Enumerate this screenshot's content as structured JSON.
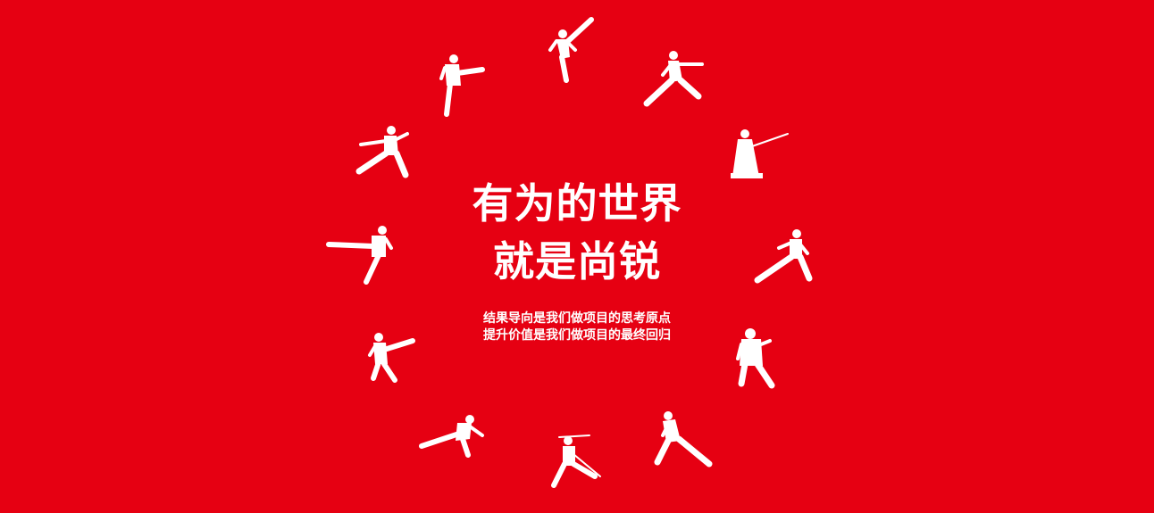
{
  "headline": {
    "line1": "有为的世界",
    "line2": "就是尚锐"
  },
  "subtitle": {
    "line1": "结果导向是我们做项目的思考原点",
    "line2": "提升价值是我们做项目的最终回归"
  },
  "figures": [
    "high-kick-figure-icon",
    "lunge-punch-figure-icon",
    "kneeling-sword-figure-icon",
    "low-stance-figure-icon",
    "ready-stance-figure-icon",
    "deep-lunge-figure-icon",
    "staff-figure-icon",
    "flying-kick-figure-icon",
    "jump-kick-figure-icon",
    "side-kick-figure-icon",
    "horse-stance-figure-icon",
    "crane-kick-figure-icon"
  ],
  "colors": {
    "background": "#e60012",
    "foreground": "#ffffff"
  }
}
